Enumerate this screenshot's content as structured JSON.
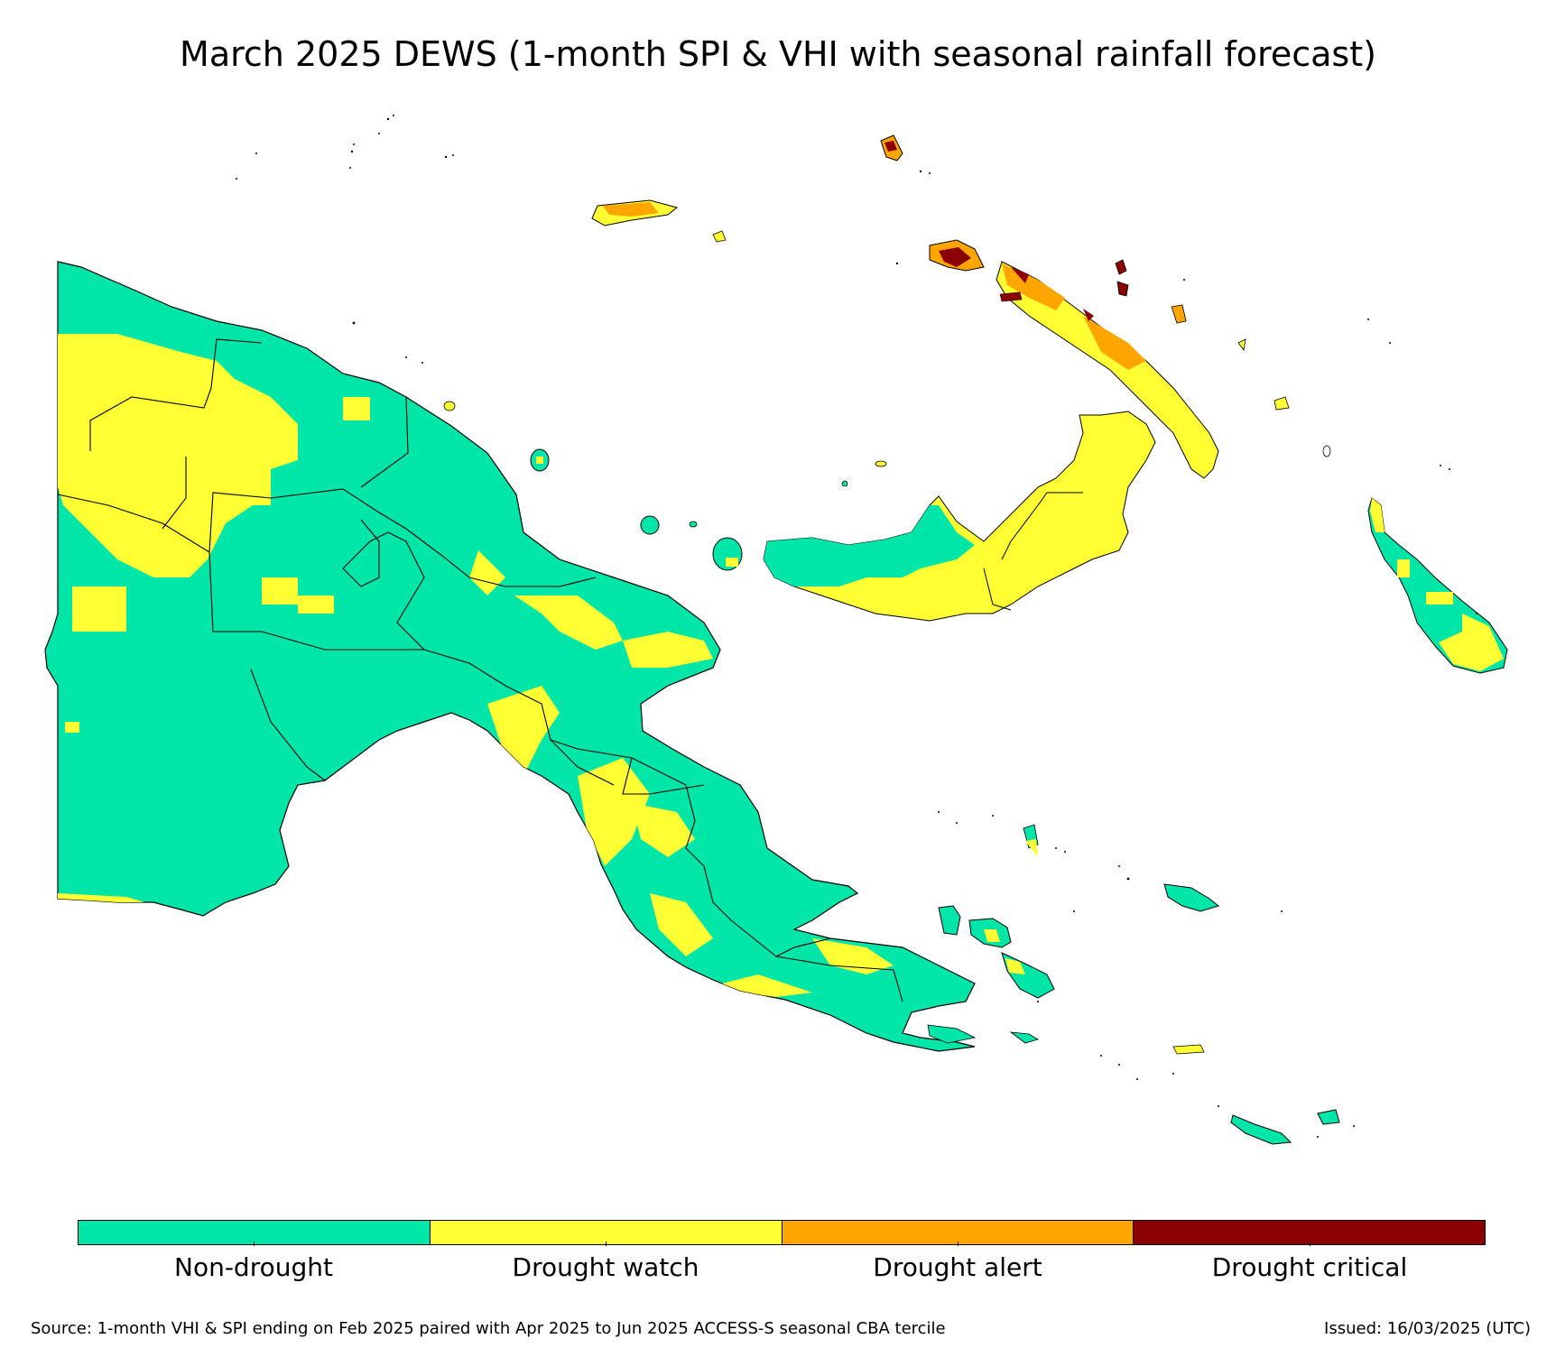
{
  "title": "March 2025 DEWS (1-month SPI & VHI with seasonal rainfall forecast)",
  "colors": {
    "non_drought": "#00e5a8",
    "drought_watch": "#ffff33",
    "drought_alert": "#ffa500",
    "drought_critical": "#8b0000",
    "border": "#000000"
  },
  "legend": [
    {
      "label": "Non-drought",
      "color": "#00e5a8"
    },
    {
      "label": "Drought watch",
      "color": "#ffff33"
    },
    {
      "label": "Drought alert",
      "color": "#ffa500"
    },
    {
      "label": "Drought critical",
      "color": "#8b0000"
    }
  ],
  "source": "Source: 1-month VHI & SPI ending on Feb 2025 paired with Apr 2025 to Jun 2025 ACCESS-S seasonal CBA tercile",
  "issued": "Issued: 16/03/2025 (UTC)"
}
